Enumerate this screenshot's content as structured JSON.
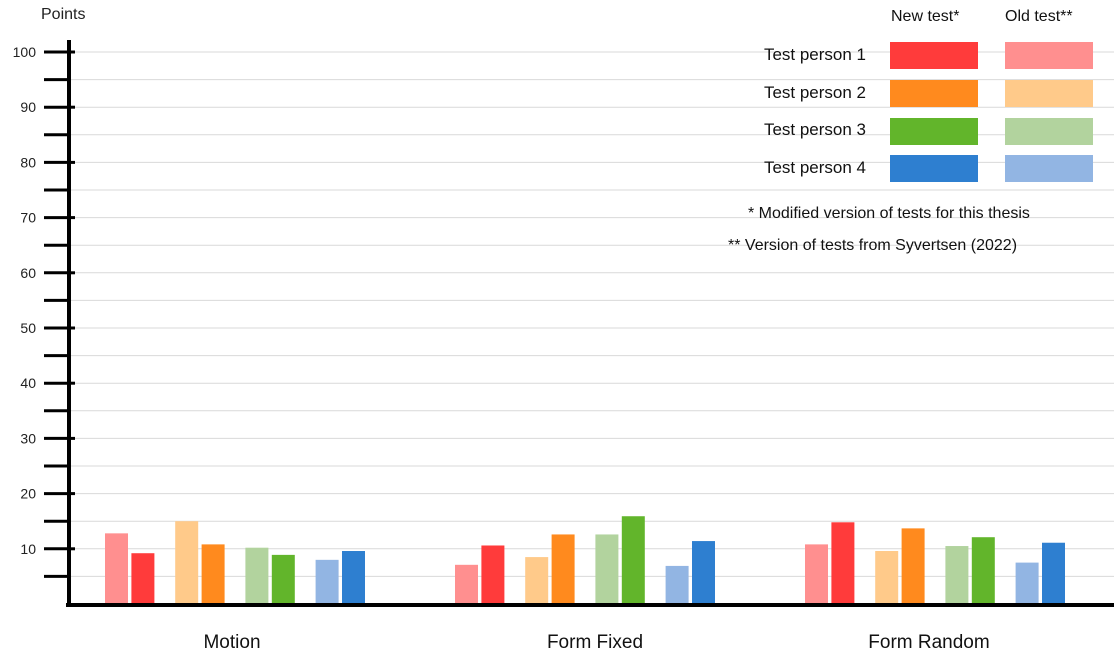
{
  "chart_data": {
    "type": "bar",
    "ylabel": "Points",
    "ylim": [
      0,
      100
    ],
    "yticks": [
      10,
      20,
      30,
      40,
      50,
      60,
      70,
      80,
      90,
      100
    ],
    "grid": true,
    "categories": [
      "Motion",
      "Form Fixed",
      "Form Random"
    ],
    "series": [
      {
        "name": "Test person 1 – Old test**",
        "color": "#ff8f8f",
        "values": [
          12.8,
          7.1,
          10.8
        ]
      },
      {
        "name": "Test person 1 – New test*",
        "color": "#ff3b3b",
        "values": [
          9.2,
          10.6,
          14.8
        ]
      },
      {
        "name": "Test person 2 – Old test**",
        "color": "#ffca8a",
        "values": [
          15.0,
          8.5,
          9.6
        ]
      },
      {
        "name": "Test person 2 – New test*",
        "color": "#ff8a1e",
        "values": [
          10.8,
          12.6,
          13.7
        ]
      },
      {
        "name": "Test person 3 – Old test**",
        "color": "#b2d39e",
        "values": [
          10.2,
          12.6,
          10.5
        ]
      },
      {
        "name": "Test person 3 – New test*",
        "color": "#62b52b",
        "values": [
          8.9,
          15.9,
          12.1
        ]
      },
      {
        "name": "Test person 4 – Old test**",
        "color": "#92b5e3",
        "values": [
          8.0,
          6.9,
          7.5
        ]
      },
      {
        "name": "Test person 4 – New test*",
        "color": "#2e7fd0",
        "values": [
          9.6,
          11.4,
          11.1
        ]
      }
    ],
    "legend": {
      "placement": "top-right",
      "columns": [
        "New test*",
        "Old test**"
      ],
      "rows": [
        {
          "label": "Test person  1",
          "new_color": "#ff3b3b",
          "old_color": "#ff8f8f"
        },
        {
          "label": "Test person 2",
          "new_color": "#ff8a1e",
          "old_color": "#ffca8a"
        },
        {
          "label": "Test person 3",
          "new_color": "#62b52b",
          "old_color": "#b2d39e"
        },
        {
          "label": "Test person 4",
          "new_color": "#2e7fd0",
          "old_color": "#92b5e3"
        }
      ]
    },
    "notes": [
      "* Modified version of tests for this thesis",
      "**  Version of tests from Syvertsen (2022)"
    ]
  }
}
